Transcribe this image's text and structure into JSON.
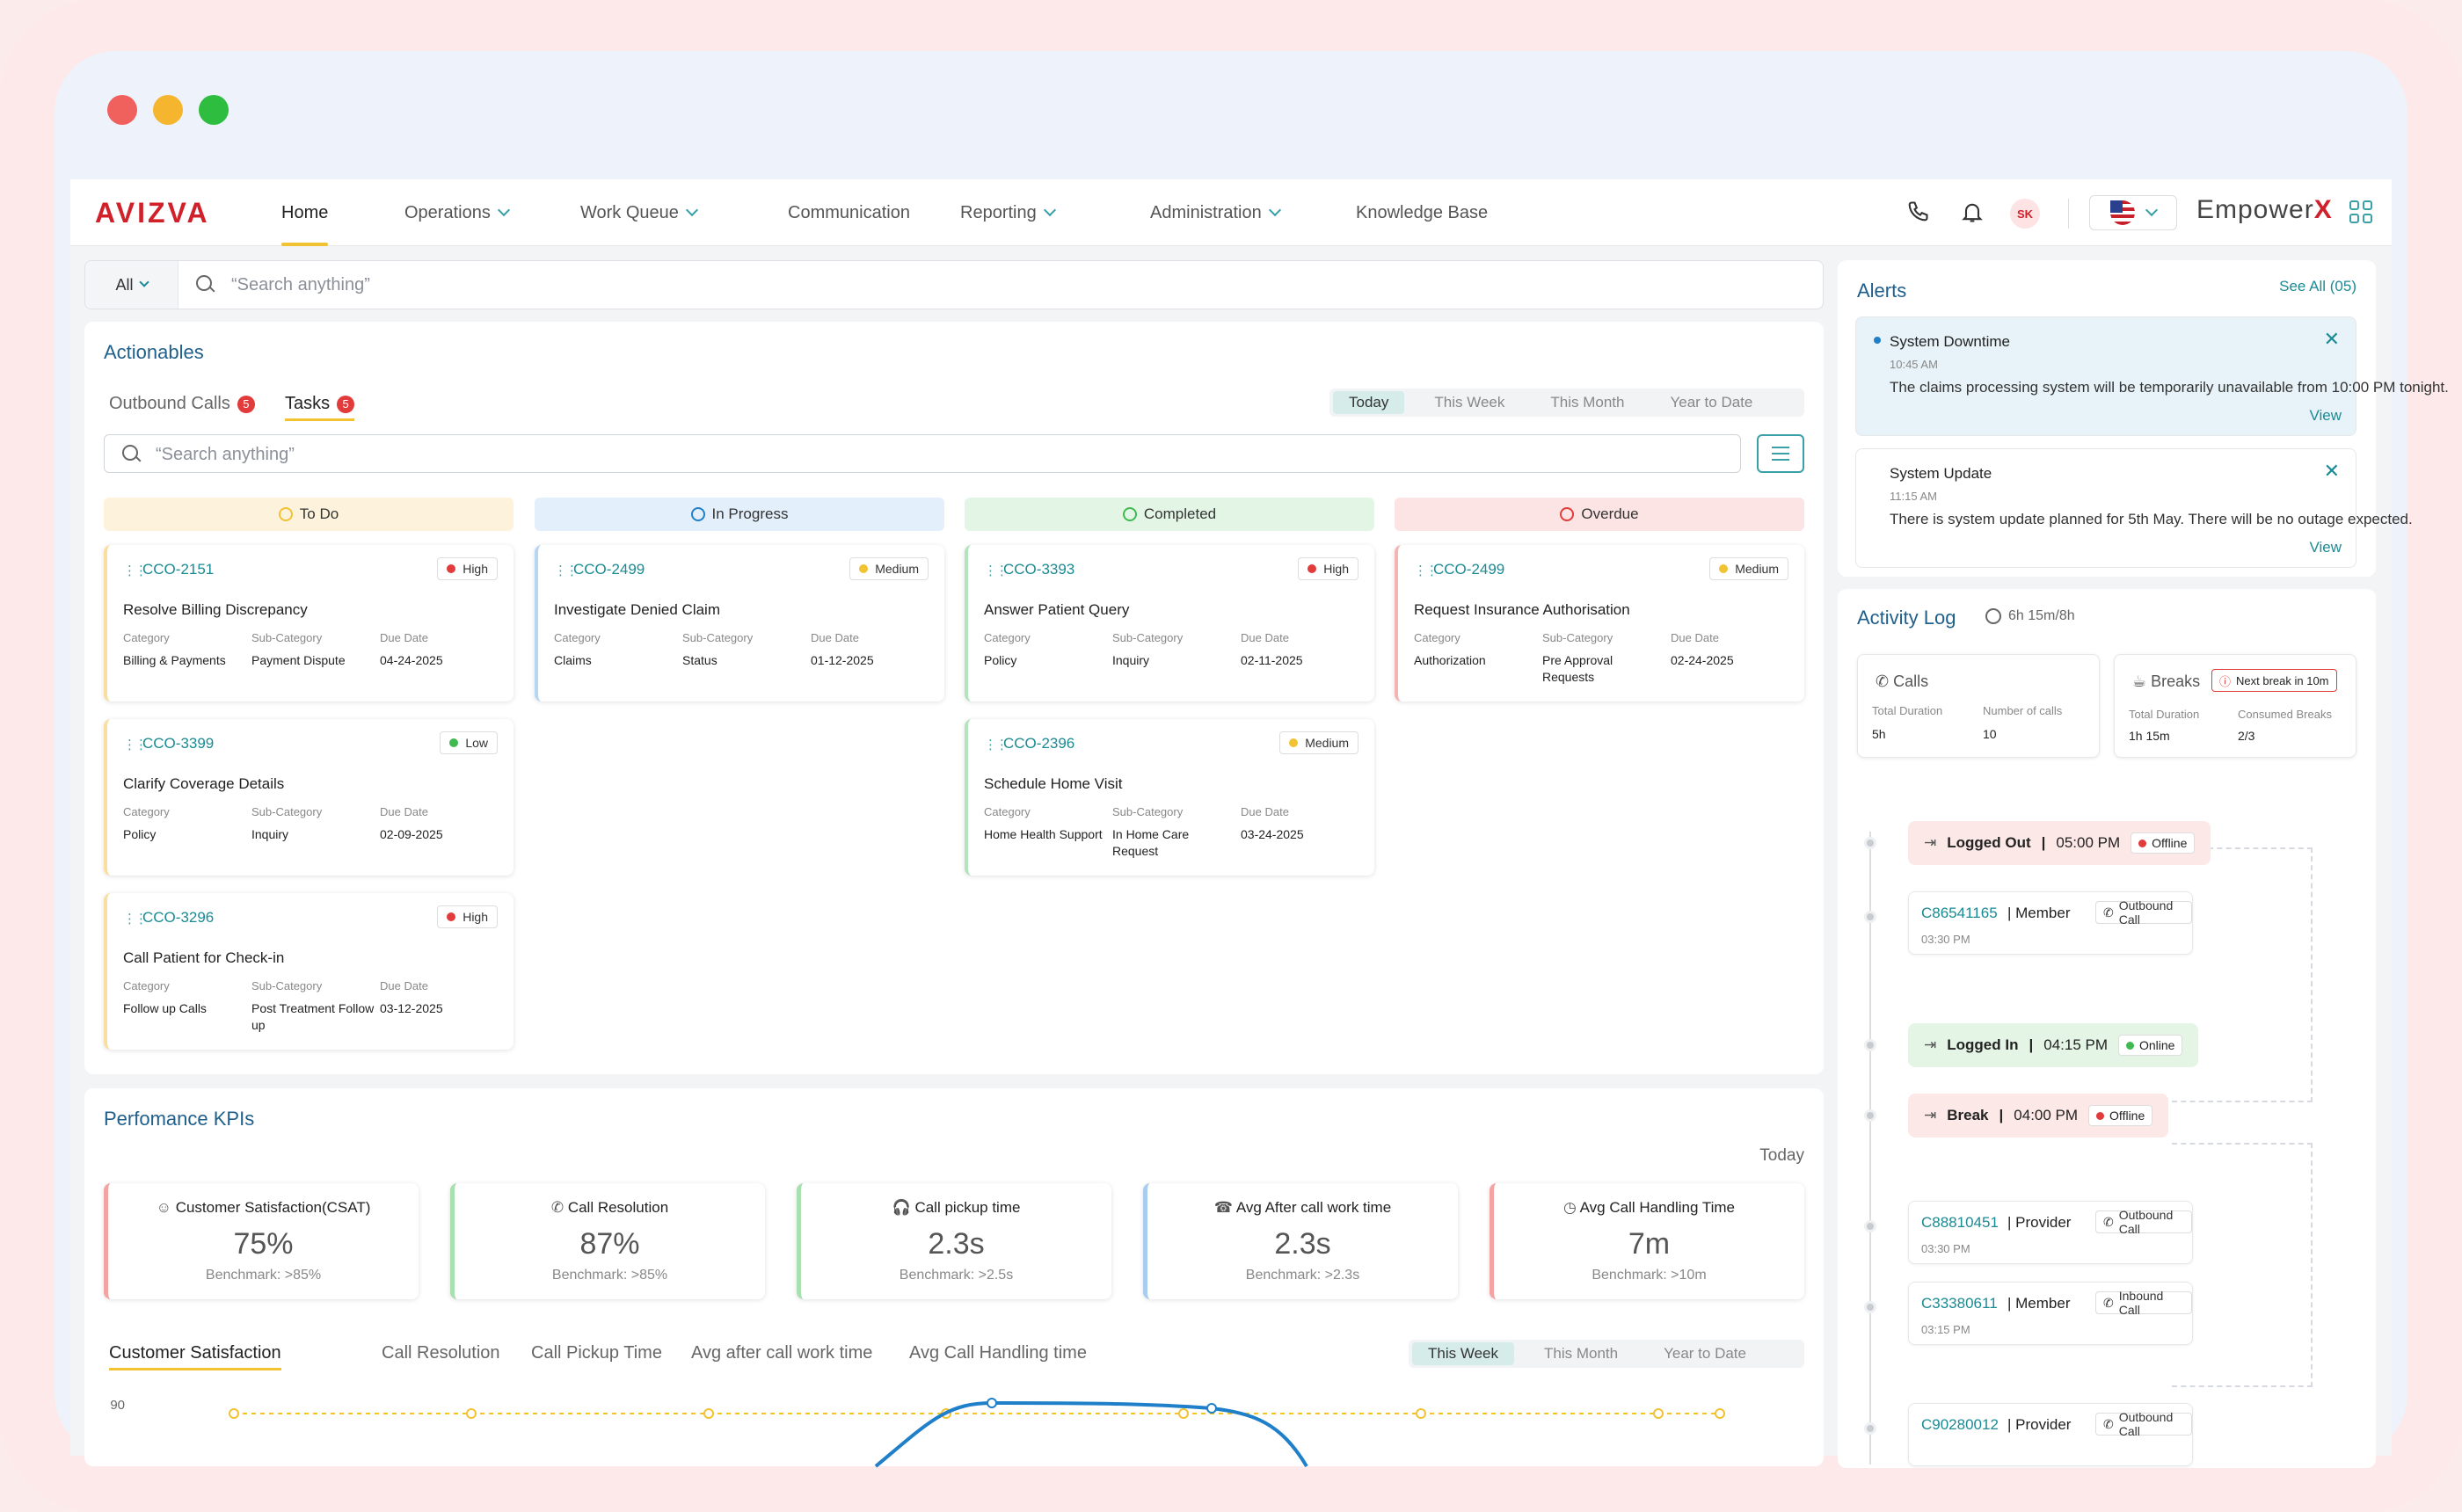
{
  "nav": {
    "logo": "AVIZVA",
    "items": [
      {
        "label": "Home",
        "dropdown": false,
        "active": true
      },
      {
        "label": "Operations",
        "dropdown": true
      },
      {
        "label": "Work Queue",
        "dropdown": true
      },
      {
        "label": "Communication",
        "dropdown": false
      },
      {
        "label": "Reporting",
        "dropdown": true
      },
      {
        "label": "Administration",
        "dropdown": true
      },
      {
        "label": "Knowledge Base",
        "dropdown": false
      }
    ],
    "avatar_initials": "SK",
    "brand": "Empower",
    "brand_suffix": "X"
  },
  "search": {
    "scope": "All",
    "placeholder": "“Search anything”"
  },
  "actionables": {
    "title": "Actionables",
    "tabs": [
      {
        "label": "Outbound Calls",
        "count": "5"
      },
      {
        "label": "Tasks",
        "count": "5"
      }
    ],
    "ranges": [
      "Today",
      "This Week",
      "This Month",
      "Year to Date"
    ],
    "search_placeholder": "“Search anything”",
    "columns": [
      {
        "label": "To Do",
        "color": "#f1c232",
        "bg": "#fdf3dc"
      },
      {
        "label": "In Progress",
        "color": "#1f7fc9",
        "bg": "#e3effa"
      },
      {
        "label": "Completed",
        "color": "#3fb950",
        "bg": "#e3f6e6"
      },
      {
        "label": "Overdue",
        "color": "#e23b3b",
        "bg": "#fce4e4"
      }
    ],
    "labels": {
      "category": "Category",
      "sub_category": "Sub-Category",
      "due_date": "Due Date"
    },
    "cards": [
      [
        {
          "id": "CCO-2151",
          "priority": "High",
          "title": "Resolve Billing Discrepancy",
          "category": "Billing & Payments",
          "sub_category": "Payment Dispute",
          "due": "04-24-2025"
        },
        {
          "id": "CCO-3399",
          "priority": "Low",
          "title": "Clarify Coverage Details",
          "category": "Policy",
          "sub_category": "Inquiry",
          "due": "02-09-2025"
        },
        {
          "id": "CCO-3296",
          "priority": "High",
          "title": "Call Patient for Check-in",
          "category": "Follow up Calls",
          "sub_category": "Post Treatment Follow up",
          "due": "03-12-2025"
        }
      ],
      [
        {
          "id": "CCO-2499",
          "priority": "Medium",
          "title": "Investigate Denied Claim",
          "category": "Claims",
          "sub_category": "Status",
          "due": "01-12-2025"
        }
      ],
      [
        {
          "id": "CCO-3393",
          "priority": "High",
          "title": "Answer Patient Query",
          "category": "Policy",
          "sub_category": "Inquiry",
          "due": "02-11-2025"
        },
        {
          "id": "CCO-2396",
          "priority": "Medium",
          "title": "Schedule Home Visit",
          "category": "Home Health Support",
          "sub_category": "In Home Care Request",
          "due": "03-24-2025"
        }
      ],
      [
        {
          "id": "CCO-2499",
          "priority": "Medium",
          "title": "Request Insurance Authorisation",
          "category": "Authorization",
          "sub_category": "Pre Approval Requests",
          "due": "02-24-2025"
        }
      ]
    ]
  },
  "kpis": {
    "title": "Perfomance KPIs",
    "period": "Today",
    "items": [
      {
        "title": "Customer Satisfaction(CSAT)",
        "value": "75%",
        "benchmark": "Benchmark: >85%",
        "color": "#f4a3a3",
        "icon": "smile-icon"
      },
      {
        "title": "Call Resolution",
        "value": "87%",
        "benchmark": "Benchmark: >85%",
        "color": "#a8e0b0",
        "icon": "phone-check-icon"
      },
      {
        "title": "Call pickup time",
        "value": "2.3s",
        "benchmark": "Benchmark: >2.5s",
        "color": "#a8e0b0",
        "icon": "headset-icon"
      },
      {
        "title": "Avg After call work time",
        "value": "2.3s",
        "benchmark": "Benchmark: >2.3s",
        "color": "#a9cdee",
        "icon": "hangup-icon"
      },
      {
        "title": "Avg Call Handling Time",
        "value": "7m",
        "benchmark": "Benchmark: >10m",
        "color": "#f4a3a3",
        "icon": "clock-icon"
      }
    ],
    "tabs": [
      "Customer Satisfaction",
      "Call Resolution",
      "Call Pickup Time",
      "Avg after call work time",
      "Avg Call Handling time"
    ],
    "ranges": [
      "This Week",
      "This Month",
      "Year to Date"
    ],
    "chart_ytick": "90"
  },
  "alerts": {
    "title": "Alerts",
    "see_all": "See All (05)",
    "view_label": "View",
    "items": [
      {
        "title": "System Downtime",
        "time": "10:45 AM",
        "body": "The claims processing system will be temporarily unavailable from 10:00 PM tonight.",
        "unread": true
      },
      {
        "title": "System Update",
        "time": "11:15 AM",
        "body": "There is system update planned for 5th May. There will be no outage expected.",
        "unread": false
      }
    ]
  },
  "activity": {
    "title": "Activity Log",
    "duration": "6h 15m/8h",
    "calls": {
      "label": "Calls",
      "total_label": "Total Duration",
      "total": "5h",
      "count_label": "Number of calls",
      "count": "10"
    },
    "breaks": {
      "label": "Breaks",
      "next": "Next break in 10m",
      "total_label": "Total Duration",
      "total": "1h 15m",
      "consumed_label": "Consumed Breaks",
      "consumed": "2/3"
    },
    "events": [
      {
        "type": "status",
        "label": "Logged Out",
        "time": "05:00 PM",
        "status": "Offline"
      },
      {
        "type": "call",
        "id": "C86541165",
        "role": "Member",
        "tag": "Outbound Call",
        "time": "03:30 PM"
      },
      {
        "type": "status",
        "label": "Logged In",
        "time": "04:15 PM",
        "status": "Online"
      },
      {
        "type": "status",
        "label": "Break",
        "time": "04:00 PM",
        "status": "Offline"
      },
      {
        "type": "call",
        "id": "C88810451",
        "role": "Provider",
        "tag": "Outbound Call",
        "time": "03:30 PM"
      },
      {
        "type": "call",
        "id": "C33380611",
        "role": "Member",
        "tag": "Inbound Call",
        "time": "03:15 PM"
      },
      {
        "type": "call",
        "id": "C90280012",
        "role": "Provider",
        "tag": "Outbound Call",
        "time": ""
      }
    ]
  },
  "colors": {
    "teal": "#1a8a93",
    "red": "#d0202a",
    "yellow": "#f1c232",
    "blue": "#1f7fc9"
  }
}
